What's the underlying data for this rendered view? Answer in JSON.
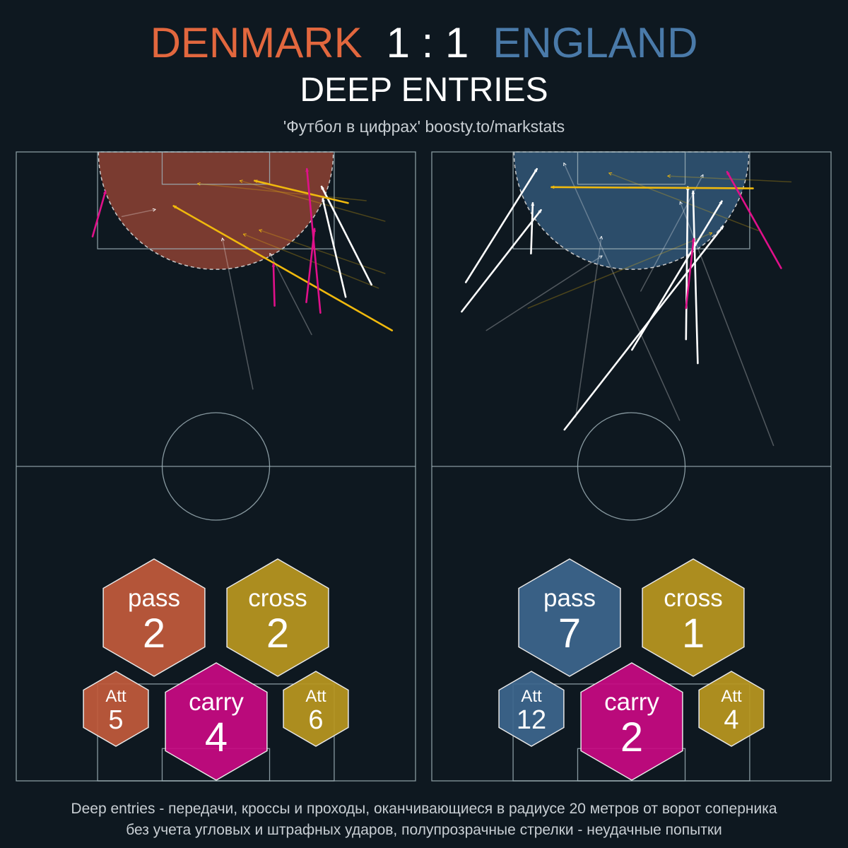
{
  "title": {
    "home_team": "DENMARK",
    "score": "1 : 1",
    "away_team": "ENGLAND",
    "home_color": "#e2673e",
    "away_color": "#4a7aa9"
  },
  "subtitle": "DEEP ENTRIES",
  "credit": "'Футбол в цифрах' boosty.to/markstats",
  "footnote": {
    "line1": "Deep entries - передачи, кроссы и проходы, оканчивающиеся в радиусе 20 метров от ворот соперника",
    "line2": "без учета угловых и штрафных ударов, полупрозрачные стрелки - неудачные попытки"
  },
  "colors": {
    "pass": "#c15a3b",
    "cross": "#b8971f",
    "carry": "#c70a82",
    "pass_away": "#3c668d",
    "arrow_pass": "#ffffff",
    "arrow_cross": "#f0b90d",
    "arrow_carry": "#e0108a",
    "pitch_line": "#9eb0b7"
  },
  "chart_data": [
    {
      "type": "scatter",
      "team": "DENMARK",
      "zone_color": "#7a3b30",
      "stats": {
        "pass": {
          "label": "pass",
          "value": 2,
          "att_label": "Att",
          "att": 5
        },
        "cross": {
          "label": "cross",
          "value": 2,
          "att_label": "Att",
          "att": 6
        },
        "carry": {
          "label": "carry",
          "value": 4
        }
      },
      "xlim": [
        0,
        68
      ],
      "ylim": [
        52.5,
        105
      ],
      "arrows": [
        {
          "kind": "pass",
          "ok": true,
          "x1": 60.5,
          "y1": 82.4,
          "x2": 52.0,
          "y2": 99.1
        },
        {
          "kind": "pass",
          "ok": true,
          "x1": 56.1,
          "y1": 80.3,
          "x2": 52.2,
          "y2": 97.0
        },
        {
          "kind": "cross",
          "ok": true,
          "x1": 64.0,
          "y1": 74.6,
          "x2": 26.8,
          "y2": 95.8
        },
        {
          "kind": "cross",
          "ok": true,
          "x1": 56.5,
          "y1": 96.3,
          "x2": 40.6,
          "y2": 100.1
        },
        {
          "kind": "carry",
          "ok": true,
          "x1": 13.0,
          "y1": 90.6,
          "x2": 15.2,
          "y2": 98.3
        },
        {
          "kind": "carry",
          "ok": true,
          "x1": 44.0,
          "y1": 78.8,
          "x2": 43.8,
          "y2": 85.9
        },
        {
          "kind": "carry",
          "ok": true,
          "x1": 49.4,
          "y1": 79.4,
          "x2": 50.8,
          "y2": 91.9
        },
        {
          "kind": "carry",
          "ok": true,
          "x1": 51.8,
          "y1": 77.6,
          "x2": 49.5,
          "y2": 102.1
        },
        {
          "kind": "pass",
          "ok": false,
          "x1": 40.3,
          "y1": 64.6,
          "x2": 35.1,
          "y2": 90.3
        },
        {
          "kind": "pass",
          "ok": false,
          "x1": 50.3,
          "y1": 73.9,
          "x2": 43.2,
          "y2": 87.7
        },
        {
          "kind": "pass",
          "ok": false,
          "x1": 18.0,
          "y1": 94.0,
          "x2": 23.7,
          "y2": 95.2
        },
        {
          "kind": "cross",
          "ok": false,
          "x1": 59.6,
          "y1": 96.7,
          "x2": 30.9,
          "y2": 99.6
        },
        {
          "kind": "cross",
          "ok": false,
          "x1": 62.8,
          "y1": 93.2,
          "x2": 38.1,
          "y2": 100.1
        },
        {
          "kind": "cross",
          "ok": false,
          "x1": 61.7,
          "y1": 81.8,
          "x2": 38.7,
          "y2": 91.0
        },
        {
          "kind": "cross",
          "ok": false,
          "x1": 62.8,
          "y1": 84.3,
          "x2": 41.4,
          "y2": 91.7
        }
      ]
    },
    {
      "type": "scatter",
      "team": "ENGLAND",
      "zone_color": "#2c4d6a",
      "stats": {
        "pass": {
          "label": "pass",
          "value": 7,
          "att_label": "Att",
          "att": 12
        },
        "cross": {
          "label": "cross",
          "value": 1,
          "att_label": "Att",
          "att": 4
        },
        "carry": {
          "label": "carry",
          "value": 2
        }
      },
      "xlim": [
        0,
        68
      ],
      "ylim": [
        52.5,
        105
      ],
      "arrows": [
        {
          "kind": "pass",
          "ok": true,
          "x1": 5.8,
          "y1": 82.8,
          "x2": 17.9,
          "y2": 102.1
        },
        {
          "kind": "pass",
          "ok": true,
          "x1": 5.1,
          "y1": 77.8,
          "x2": 18.6,
          "y2": 95.1
        },
        {
          "kind": "pass",
          "ok": true,
          "x1": 16.9,
          "y1": 87.7,
          "x2": 17.2,
          "y2": 96.3
        },
        {
          "kind": "pass",
          "ok": true,
          "x1": 34.1,
          "y1": 71.3,
          "x2": 49.4,
          "y2": 96.6
        },
        {
          "kind": "pass",
          "ok": true,
          "x1": 43.3,
          "y1": 73.1,
          "x2": 43.6,
          "y2": 99.0
        },
        {
          "kind": "pass",
          "ok": true,
          "x1": 45.3,
          "y1": 69.0,
          "x2": 44.5,
          "y2": 98.3
        },
        {
          "kind": "pass",
          "ok": true,
          "x1": 22.6,
          "y1": 57.7,
          "x2": 49.6,
          "y2": 92.3
        },
        {
          "kind": "cross",
          "ok": true,
          "x1": 54.7,
          "y1": 98.8,
          "x2": 20.4,
          "y2": 99.0
        },
        {
          "kind": "carry",
          "ok": true,
          "x1": 59.5,
          "y1": 85.2,
          "x2": 50.3,
          "y2": 101.6
        },
        {
          "kind": "carry",
          "ok": true,
          "x1": 43.3,
          "y1": 78.4,
          "x2": 44.6,
          "y2": 90.2
        },
        {
          "kind": "pass",
          "ok": false,
          "x1": 24.5,
          "y1": 59.8,
          "x2": 28.9,
          "y2": 90.6
        },
        {
          "kind": "pass",
          "ok": false,
          "x1": 9.3,
          "y1": 74.6,
          "x2": 29.0,
          "y2": 87.3
        },
        {
          "kind": "pass",
          "ok": false,
          "x1": 42.2,
          "y1": 59.3,
          "x2": 22.5,
          "y2": 103.1
        },
        {
          "kind": "pass",
          "ok": false,
          "x1": 58.2,
          "y1": 55.0,
          "x2": 42.3,
          "y2": 96.5
        },
        {
          "kind": "pass",
          "ok": false,
          "x1": 35.6,
          "y1": 81.3,
          "x2": 46.2,
          "y2": 101.1
        },
        {
          "kind": "cross",
          "ok": false,
          "x1": 61.2,
          "y1": 99.9,
          "x2": 40.2,
          "y2": 100.9
        },
        {
          "kind": "cross",
          "ok": false,
          "x1": 55.6,
          "y1": 91.6,
          "x2": 30.2,
          "y2": 101.4
        },
        {
          "kind": "cross",
          "ok": false,
          "x1": 16.4,
          "y1": 78.4,
          "x2": 47.7,
          "y2": 91.2
        }
      ]
    }
  ]
}
